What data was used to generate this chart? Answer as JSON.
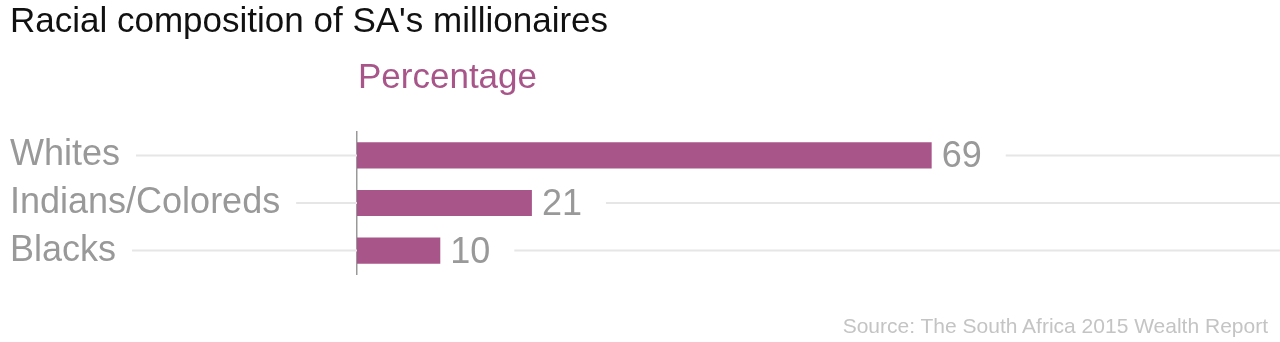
{
  "chart_data": {
    "type": "bar",
    "orientation": "horizontal",
    "title": "Racial composition of SA's millionaires",
    "xlabel": "Percentage",
    "categories": [
      "Whites",
      "Indians/Coloreds",
      "Blacks"
    ],
    "values": [
      69,
      21,
      10
    ],
    "color": "#a8568a",
    "data_labels": true,
    "grid": "y",
    "legend": false,
    "annotations": [
      "Source: The South Africa 2015 Wealth Report"
    ]
  }
}
